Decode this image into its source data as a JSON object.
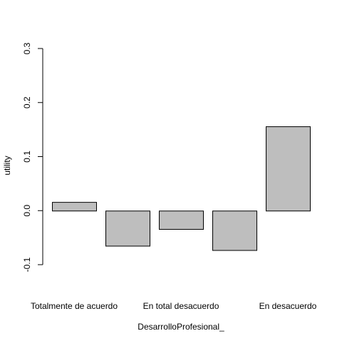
{
  "chart_data": {
    "type": "bar",
    "categories": [
      "Totalmente de acuerdo",
      "",
      "En total desacuerdo",
      "",
      "En desacuerdo"
    ],
    "values": [
      0.016,
      -0.065,
      -0.034,
      -0.073,
      0.156
    ],
    "xlabel": "DesarrolloProfesional_",
    "ylabel": "utility",
    "ylim": [
      -0.1,
      0.3
    ],
    "yticks": [
      "-0.1",
      "0.0",
      "0.1",
      "0.2",
      "0.3"
    ],
    "grid": false,
    "colors": {
      "bar_fill": "#bebebe",
      "bar_stroke": "#000000",
      "axis": "#000000"
    }
  }
}
